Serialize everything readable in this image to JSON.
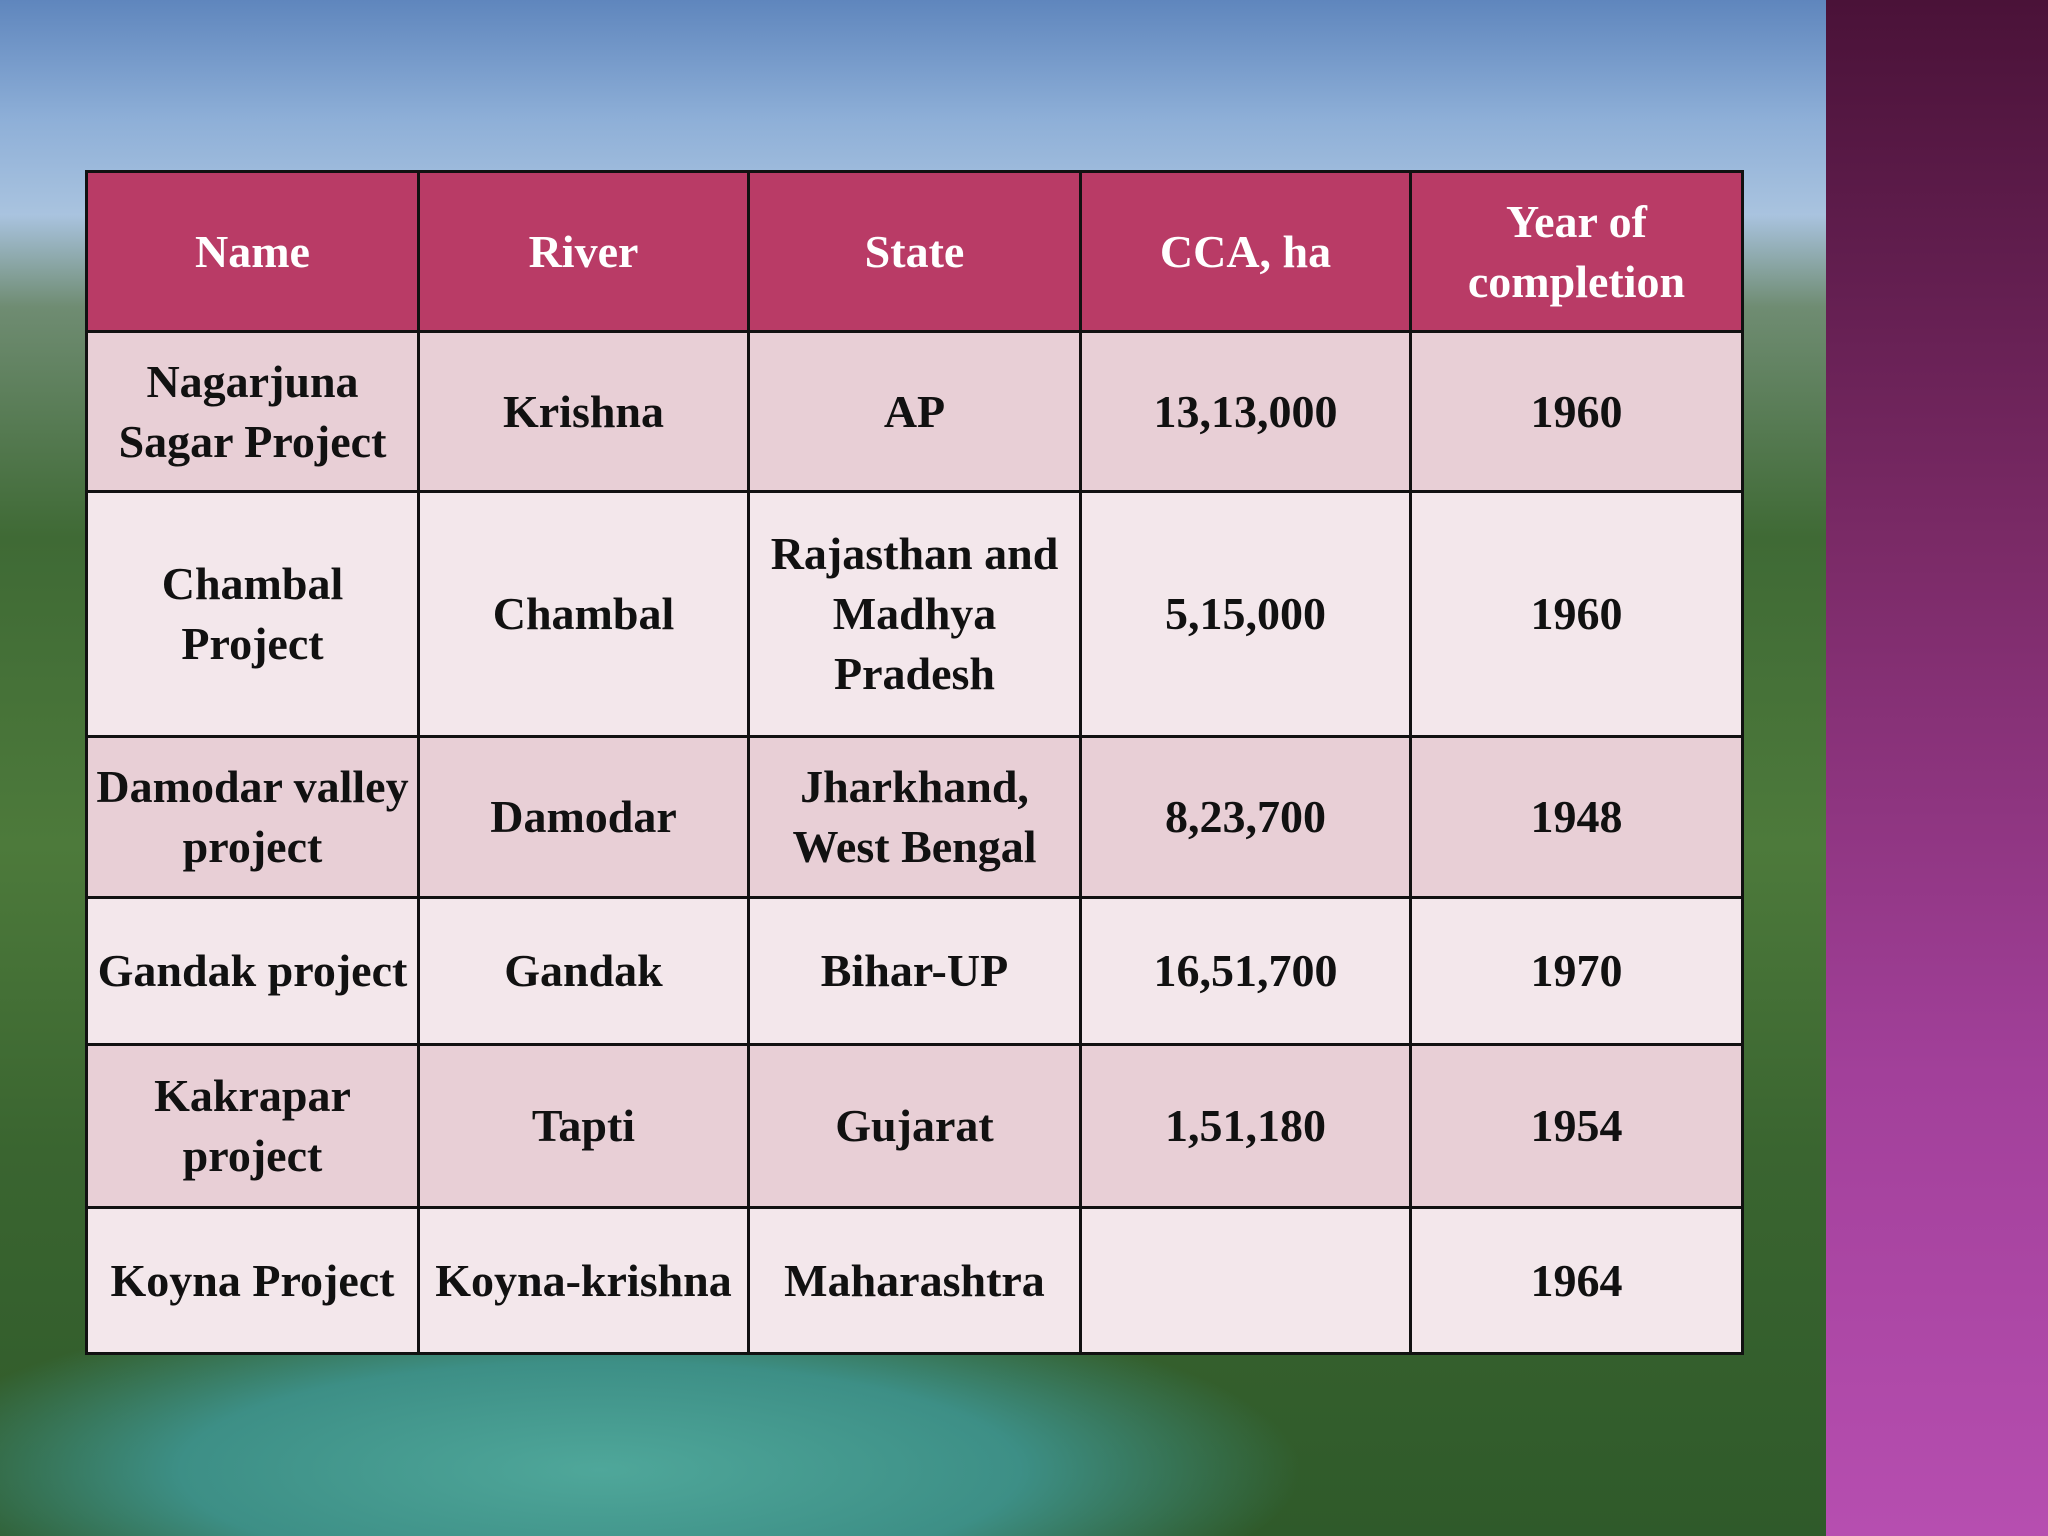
{
  "table": {
    "header": [
      "Name",
      "River",
      "State",
      "CCA, ha",
      "Year of completion"
    ],
    "rows": [
      [
        "Nagarjuna Sagar Project",
        "Krishna",
        "AP",
        "13,13,000",
        "1960"
      ],
      [
        "Chambal Project",
        "Chambal",
        "Rajasthan and Madhya Pradesh",
        "5,15,000",
        "1960"
      ],
      [
        "Damodar valley project",
        "Damodar",
        "Jharkhand, West Bengal",
        "8,23,700",
        "1948"
      ],
      [
        "Gandak project",
        "Gandak",
        "Bihar-UP",
        "16,51,700",
        "1970"
      ],
      [
        "Kakrapar project",
        "Tapti",
        "Gujarat",
        "1,51,180",
        "1954"
      ],
      [
        "Koyna Project",
        "Koyna-krishna",
        "Maharashtra",
        null,
        "1964"
      ]
    ]
  }
}
